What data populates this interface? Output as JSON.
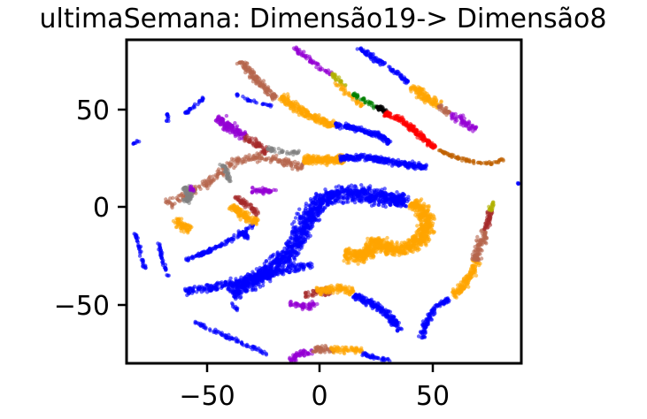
{
  "chart_data": {
    "type": "scatter",
    "title": "ultimaSemana: Dimensão19-> Dimensão8",
    "xlabel": "",
    "ylabel": "",
    "xlim": [
      -86,
      88
    ],
    "ylim": [
      -81,
      86
    ],
    "grid": false,
    "legend": "none",
    "x_ticks": [
      -50,
      0,
      50
    ],
    "y_ticks": [
      50,
      0,
      -50
    ],
    "x_tick_labels": [
      "−50",
      "0",
      "50"
    ],
    "y_tick_labels": [
      "50",
      "0",
      "−50"
    ],
    "colors": {
      "blue": "#0000ff",
      "orange": "#ffa500",
      "purple": "#9400d3",
      "brown": "#b5654d",
      "gray": "#808080",
      "red": "#ff0000",
      "green": "#008000",
      "black": "#000000",
      "dark-red": "#a52a2a",
      "dark-orange": "#c06000",
      "olive": "#b0b000"
    },
    "clusters": [
      {
        "color": "blue",
        "path": [
          [
            -40,
            -45
          ],
          [
            -25,
            -35
          ],
          [
            -12,
            -22
          ],
          [
            -6,
            -5
          ],
          [
            2,
            5
          ],
          [
            14,
            7
          ],
          [
            26,
            5
          ],
          [
            38,
            2
          ]
        ],
        "width": 6,
        "n": 1400
      },
      {
        "color": "orange",
        "path": [
          [
            40,
            2
          ],
          [
            46,
            -4
          ],
          [
            46,
            -14
          ],
          [
            38,
            -22
          ],
          [
            28,
            -22
          ],
          [
            24,
            -17
          ],
          [
            20,
            -26
          ],
          [
            10,
            -25
          ]
        ],
        "width": 5,
        "n": 900
      },
      {
        "color": "blue",
        "path": [
          [
            -60,
            -44
          ],
          [
            -48,
            -42
          ],
          [
            -38,
            -39
          ],
          [
            -26,
            -36
          ],
          [
            -14,
            -32
          ],
          [
            -4,
            -30
          ]
        ],
        "width": 3,
        "n": 300
      },
      {
        "color": "blue",
        "path": [
          [
            -60,
            -28
          ],
          [
            -48,
            -22
          ],
          [
            -38,
            -16
          ],
          [
            -30,
            -10
          ]
        ],
        "width": 1.5,
        "n": 120
      },
      {
        "color": "orange",
        "path": [
          [
            -40,
            0
          ],
          [
            -34,
            -5
          ],
          [
            -28,
            -8
          ]
        ],
        "width": 3,
        "n": 120
      },
      {
        "color": "dark-red",
        "path": [
          [
            -38,
            5
          ],
          [
            -32,
            0
          ],
          [
            -28,
            -4
          ]
        ],
        "width": 2,
        "n": 60
      },
      {
        "color": "purple",
        "path": [
          [
            -31,
            8
          ],
          [
            -26,
            8
          ],
          [
            -20,
            8
          ]
        ],
        "width": 2,
        "n": 50
      },
      {
        "color": "blue",
        "path": [
          [
            -37,
            -13
          ],
          [
            -32,
            -16
          ]
        ],
        "width": 1.5,
        "n": 30
      },
      {
        "color": "brown",
        "path": [
          [
            -68,
            1
          ],
          [
            -60,
            6
          ],
          [
            -50,
            12
          ],
          [
            -40,
            22
          ],
          [
            -30,
            26
          ],
          [
            -20,
            24
          ],
          [
            -8,
            20
          ]
        ],
        "width": 3,
        "n": 250
      },
      {
        "color": "orange",
        "path": [
          [
            -8,
            24
          ],
          [
            0,
            24
          ],
          [
            10,
            24
          ]
        ],
        "width": 3,
        "n": 250
      },
      {
        "color": "blue",
        "path": [
          [
            8,
            25
          ],
          [
            22,
            25
          ],
          [
            36,
            22
          ],
          [
            46,
            20
          ]
        ],
        "width": 2.5,
        "n": 300
      },
      {
        "color": "purple",
        "path": [
          [
            -46,
            46
          ],
          [
            -40,
            40
          ],
          [
            -34,
            36
          ]
        ],
        "width": 3.5,
        "n": 130
      },
      {
        "color": "dark-red",
        "path": [
          [
            -34,
            36
          ],
          [
            -28,
            32
          ],
          [
            -24,
            28
          ]
        ],
        "width": 2.5,
        "n": 60
      },
      {
        "color": "gray",
        "path": [
          [
            -24,
            30
          ],
          [
            -18,
            28
          ],
          [
            -10,
            28
          ]
        ],
        "width": 2,
        "n": 40
      },
      {
        "color": "brown",
        "path": [
          [
            -36,
            75
          ],
          [
            -32,
            70
          ],
          [
            -26,
            62
          ],
          [
            -20,
            56
          ]
        ],
        "width": 2.5,
        "n": 150
      },
      {
        "color": "orange",
        "path": [
          [
            -18,
            57
          ],
          [
            -10,
            50
          ],
          [
            0,
            44
          ],
          [
            6,
            42
          ]
        ],
        "width": 3,
        "n": 220
      },
      {
        "color": "blue",
        "path": [
          [
            6,
            42
          ],
          [
            16,
            40
          ],
          [
            26,
            36
          ],
          [
            30,
            33
          ]
        ],
        "width": 2,
        "n": 180
      },
      {
        "color": "blue",
        "path": [
          [
            -38,
            58
          ],
          [
            -30,
            54
          ],
          [
            -22,
            52
          ]
        ],
        "width": 1,
        "n": 30
      },
      {
        "color": "purple",
        "path": [
          [
            -12,
            82
          ],
          [
            -4,
            74
          ],
          [
            4,
            68
          ]
        ],
        "width": 1.8,
        "n": 60
      },
      {
        "color": "olive",
        "path": [
          [
            4,
            68
          ],
          [
            8,
            65
          ],
          [
            10,
            62
          ]
        ],
        "width": 1.5,
        "n": 30
      },
      {
        "color": "orange",
        "path": [
          [
            6,
            64
          ],
          [
            12,
            58
          ],
          [
            18,
            52
          ]
        ],
        "width": 1.8,
        "n": 40
      },
      {
        "color": "green",
        "path": [
          [
            14,
            58
          ],
          [
            20,
            54
          ],
          [
            24,
            51
          ]
        ],
        "width": 1.5,
        "n": 40
      },
      {
        "color": "black",
        "path": [
          [
            24,
            52
          ],
          [
            28,
            49
          ]
        ],
        "width": 1.5,
        "n": 30
      },
      {
        "color": "red",
        "path": [
          [
            28,
            48
          ],
          [
            36,
            44
          ],
          [
            44,
            36
          ],
          [
            50,
            30
          ]
        ],
        "width": 2,
        "n": 180
      },
      {
        "color": "dark-orange",
        "path": [
          [
            51,
            29
          ],
          [
            58,
            26
          ],
          [
            66,
            23
          ],
          [
            73,
            22
          ],
          [
            80,
            24
          ]
        ],
        "width": 1.2,
        "n": 80
      },
      {
        "color": "blue",
        "path": [
          [
            16,
            82
          ],
          [
            24,
            76
          ],
          [
            32,
            70
          ],
          [
            38,
            64
          ]
        ],
        "width": 2,
        "n": 110
      },
      {
        "color": "orange",
        "path": [
          [
            40,
            62
          ],
          [
            46,
            56
          ],
          [
            52,
            52
          ]
        ],
        "width": 3,
        "n": 120
      },
      {
        "color": "brown",
        "path": [
          [
            52,
            52
          ],
          [
            56,
            48
          ]
        ],
        "width": 2,
        "n": 30
      },
      {
        "color": "purple",
        "path": [
          [
            56,
            48
          ],
          [
            62,
            44
          ],
          [
            68,
            40
          ]
        ],
        "width": 3,
        "n": 60
      },
      {
        "color": "gray",
        "path": [
          [
            -60,
            10
          ],
          [
            -58,
            6
          ],
          [
            -60,
            2
          ]
        ],
        "width": 3,
        "n": 80
      },
      {
        "color": "gray",
        "path": [
          [
            -44,
            22
          ],
          [
            -42,
            18
          ],
          [
            -40,
            12
          ]
        ],
        "width": 1.5,
        "n": 40
      },
      {
        "color": "purple",
        "path": [
          [
            -58,
            10
          ],
          [
            -56,
            8
          ]
        ],
        "width": 1.5,
        "n": 12
      },
      {
        "color": "orange",
        "path": [
          [
            -64,
            -6
          ],
          [
            -62,
            -10
          ],
          [
            -58,
            -12
          ]
        ],
        "width": 3,
        "n": 80
      },
      {
        "color": "blue",
        "path": [
          [
            -56,
            -60
          ],
          [
            -44,
            -66
          ],
          [
            -32,
            -72
          ],
          [
            -24,
            -76
          ]
        ],
        "width": 1.5,
        "n": 80
      },
      {
        "color": "blue",
        "path": [
          [
            -82,
            -14
          ],
          [
            -80,
            -24
          ],
          [
            -78,
            -32
          ]
        ],
        "width": 1,
        "n": 40
      },
      {
        "color": "blue",
        "path": [
          [
            -72,
            -18
          ],
          [
            -70,
            -28
          ],
          [
            -68,
            -36
          ]
        ],
        "width": 1,
        "n": 40
      },
      {
        "color": "blue",
        "path": [
          [
            -52,
            56
          ],
          [
            -56,
            52
          ],
          [
            -60,
            48
          ]
        ],
        "width": 1,
        "n": 30
      },
      {
        "color": "blue",
        "path": [
          [
            -68,
            44
          ],
          [
            -68,
            48
          ]
        ],
        "width": 1,
        "n": 12
      },
      {
        "color": "blue",
        "path": [
          [
            -80,
            34
          ],
          [
            -84,
            32
          ]
        ],
        "width": 1,
        "n": 8
      },
      {
        "color": "blue",
        "path": [
          [
            -40,
            -50
          ],
          [
            -36,
            -55
          ]
        ],
        "width": 1,
        "n": 10
      },
      {
        "color": "purple",
        "path": [
          [
            -14,
            -50
          ],
          [
            -8,
            -52
          ],
          [
            -2,
            -50
          ]
        ],
        "width": 2.5,
        "n": 60
      },
      {
        "color": "dark-red",
        "path": [
          [
            -8,
            -46
          ],
          [
            -2,
            -44
          ],
          [
            4,
            -44
          ]
        ],
        "width": 2.5,
        "n": 60
      },
      {
        "color": "orange",
        "path": [
          [
            -2,
            -44
          ],
          [
            6,
            -42
          ],
          [
            14,
            -44
          ]
        ],
        "width": 3,
        "n": 100
      },
      {
        "color": "blue",
        "path": [
          [
            14,
            -46
          ],
          [
            22,
            -50
          ],
          [
            30,
            -56
          ],
          [
            34,
            -64
          ]
        ],
        "width": 2.5,
        "n": 200
      },
      {
        "color": "purple",
        "path": [
          [
            -14,
            -80
          ],
          [
            -10,
            -76
          ],
          [
            -4,
            -75
          ]
        ],
        "width": 2.5,
        "n": 60
      },
      {
        "color": "brown",
        "path": [
          [
            -4,
            -74
          ],
          [
            2,
            -74
          ],
          [
            6,
            -74
          ]
        ],
        "width": 2.5,
        "n": 50
      },
      {
        "color": "orange",
        "path": [
          [
            4,
            -74
          ],
          [
            12,
            -74
          ],
          [
            18,
            -74
          ]
        ],
        "width": 2.5,
        "n": 60
      },
      {
        "color": "blue",
        "path": [
          [
            18,
            -76
          ],
          [
            24,
            -78
          ],
          [
            30,
            -80
          ]
        ],
        "width": 1.5,
        "n": 40
      },
      {
        "color": "blue",
        "path": [
          [
            44,
            -68
          ],
          [
            46,
            -60
          ],
          [
            50,
            -52
          ],
          [
            56,
            -48
          ]
        ],
        "width": 2,
        "n": 120
      },
      {
        "color": "orange",
        "path": [
          [
            58,
            -46
          ],
          [
            62,
            -42
          ],
          [
            66,
            -34
          ],
          [
            68,
            -28
          ]
        ],
        "width": 3,
        "n": 140
      },
      {
        "color": "brown",
        "path": [
          [
            68,
            -28
          ],
          [
            70,
            -20
          ],
          [
            72,
            -12
          ]
        ],
        "width": 3,
        "n": 100
      },
      {
        "color": "dark-red",
        "path": [
          [
            72,
            -12
          ],
          [
            74,
            -6
          ],
          [
            74,
            -2
          ]
        ],
        "width": 2,
        "n": 50
      },
      {
        "color": "olive",
        "path": [
          [
            74,
            -2
          ],
          [
            76,
            2
          ]
        ],
        "width": 1.5,
        "n": 20
      },
      {
        "color": "blue",
        "path": [
          [
            86,
            12
          ],
          [
            88,
            11
          ]
        ],
        "width": 0.5,
        "n": 4
      }
    ]
  }
}
